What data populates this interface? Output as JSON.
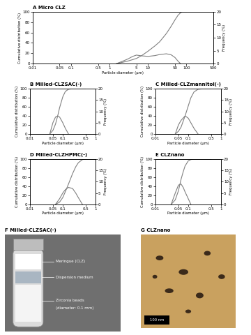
{
  "chart_data": [
    {
      "type": "line",
      "title": "A Micro CLZ",
      "x_label": "Particle diameter (μm)",
      "y_label": "Cumulative distribution (%)",
      "y2_label": "Frequency (%)",
      "log": "x",
      "xlim": [
        0.01,
        500
      ],
      "xticks": [
        0.01,
        0.05,
        0.1,
        0.5,
        1,
        5,
        10,
        50,
        100,
        500
      ],
      "ylim": [
        0,
        100
      ],
      "yticks": [
        0,
        20,
        40,
        60,
        80,
        100
      ],
      "y2lim": [
        0,
        20
      ],
      "y2ticks": [
        0,
        5,
        10,
        15,
        20
      ],
      "series": [
        {
          "color": "#808080",
          "x": [
            1.5,
            2,
            3,
            5,
            7,
            10,
            15,
            20,
            30,
            40,
            50,
            60,
            70,
            80,
            100
          ],
          "values": [
            0,
            2,
            5,
            10,
            16,
            24,
            34,
            42,
            58,
            72,
            84,
            93,
            98,
            100,
            100
          ]
        },
        {
          "color": "#808080",
          "axis": "y2",
          "x": [
            1.5,
            2,
            3,
            4,
            5,
            7,
            10,
            15,
            20,
            30,
            40,
            50,
            60,
            70
          ],
          "values": [
            0,
            0.7,
            1.8,
            2.8,
            3.3,
            3.0,
            2.8,
            3.1,
            3.5,
            3.8,
            3.4,
            2.4,
            1.0,
            0
          ]
        }
      ]
    },
    {
      "type": "line",
      "title": "B Milled-CLZSAC(-)",
      "x_label": "Particle diameter (μm)",
      "y_label": "Cumulative distribution (%)",
      "y2_label": "Frequency (%)",
      "log": "x",
      "xlim": [
        0.01,
        1
      ],
      "xticks": [
        0.01,
        0.05,
        0.1,
        0.5,
        1
      ],
      "ylim": [
        0,
        100
      ],
      "yticks": [
        0,
        20,
        40,
        60,
        80,
        100
      ],
      "y2lim": [
        0,
        20
      ],
      "y2ticks": [
        0,
        5,
        10,
        15,
        20
      ],
      "series": [
        {
          "color": "#808080",
          "x": [
            0.04,
            0.05,
            0.06,
            0.07,
            0.08,
            0.1,
            0.12,
            0.15,
            0.2,
            0.3,
            0.5
          ],
          "values": [
            0,
            8,
            22,
            40,
            58,
            82,
            94,
            99,
            100,
            100,
            100
          ]
        },
        {
          "color": "#808080",
          "axis": "y2",
          "x": [
            0.04,
            0.05,
            0.06,
            0.07,
            0.08,
            0.1,
            0.12,
            0.15
          ],
          "values": [
            0,
            5,
            7.5,
            8,
            7.5,
            5,
            2.5,
            0
          ]
        }
      ]
    },
    {
      "type": "line",
      "title": "C Milled-CLZmannitol(-)",
      "x_label": "Particle diameter (μm)",
      "y_label": "Cumulative distribution (%)",
      "y2_label": "Frequency (%)",
      "log": "x",
      "xlim": [
        0.01,
        1
      ],
      "xticks": [
        0.01,
        0.05,
        0.1,
        0.5,
        1
      ],
      "ylim": [
        0,
        100
      ],
      "yticks": [
        0,
        20,
        40,
        60,
        80,
        100
      ],
      "y2lim": [
        0,
        20
      ],
      "y2ticks": [
        0,
        5,
        10,
        15,
        20
      ],
      "series": [
        {
          "color": "#808080",
          "x": [
            0.04,
            0.05,
            0.06,
            0.08,
            0.1,
            0.12,
            0.15,
            0.2,
            0.3,
            0.5
          ],
          "values": [
            0,
            6,
            15,
            40,
            62,
            80,
            93,
            99,
            100,
            100
          ]
        },
        {
          "color": "#808080",
          "axis": "y2",
          "x": [
            0.04,
            0.05,
            0.06,
            0.08,
            0.1,
            0.12,
            0.15,
            0.2
          ],
          "values": [
            0,
            4,
            6,
            8,
            7,
            5,
            2.5,
            0
          ]
        }
      ]
    },
    {
      "type": "line",
      "title": "D Milled-CLZHPMC(-)",
      "x_label": "Particle diameter (μm)",
      "y_label": "Cumulative distribution (%)",
      "y2_label": "Frequency (%)",
      "log": "x",
      "xlim": [
        0.01,
        1
      ],
      "xticks": [
        0.01,
        0.05,
        0.1,
        0.5,
        1
      ],
      "ylim": [
        0,
        100
      ],
      "yticks": [
        0,
        20,
        40,
        60,
        80,
        100
      ],
      "y2lim": [
        0,
        20
      ],
      "y2ticks": [
        0,
        5,
        10,
        15,
        20
      ],
      "series": [
        {
          "color": "#808080",
          "x": [
            0.06,
            0.08,
            0.1,
            0.12,
            0.15,
            0.2,
            0.25,
            0.3,
            0.4,
            0.5,
            1
          ],
          "values": [
            0,
            5,
            15,
            28,
            45,
            68,
            83,
            92,
            99,
            100,
            100
          ]
        },
        {
          "color": "#808080",
          "axis": "y2",
          "x": [
            0.06,
            0.08,
            0.1,
            0.12,
            0.15,
            0.2,
            0.25,
            0.3,
            0.4
          ],
          "values": [
            0,
            2.5,
            5,
            6.5,
            7.5,
            7,
            5,
            3,
            0
          ]
        }
      ]
    },
    {
      "type": "line",
      "title": "E CLZnano",
      "x_label": "Particle diameter (μm)",
      "y_label": "Cumulative distribution (%)",
      "y2_label": "Frequency (%)",
      "log": "x",
      "xlim": [
        0.01,
        1
      ],
      "xticks": [
        0.01,
        0.05,
        0.1,
        0.5,
        1
      ],
      "ylim": [
        0,
        100
      ],
      "yticks": [
        0,
        20,
        40,
        60,
        80,
        100
      ],
      "y2lim": [
        0,
        20
      ],
      "y2ticks": [
        0,
        5,
        10,
        15,
        20
      ],
      "series": [
        {
          "color": "#808080",
          "x": [
            0.03,
            0.04,
            0.05,
            0.06,
            0.07,
            0.08,
            0.1,
            0.12,
            0.15,
            0.2,
            0.5
          ],
          "values": [
            0,
            10,
            30,
            55,
            72,
            85,
            96,
            99,
            100,
            100,
            100
          ]
        },
        {
          "color": "#808080",
          "axis": "y2",
          "x": [
            0.03,
            0.04,
            0.05,
            0.06,
            0.07,
            0.08,
            0.1,
            0.12
          ],
          "values": [
            0,
            5,
            8.5,
            9,
            7.5,
            5.5,
            2.5,
            0
          ]
        }
      ]
    }
  ],
  "panels": [
    {
      "title": "F Milled-CLZSAC(-)",
      "labels": [
        "Meringue (CLZ)",
        "Dispersion medium",
        "Zirconia beads",
        "(diameter: 0.1 mm)"
      ]
    },
    {
      "title": "G CLZnano",
      "scale_bar": "100 nm"
    }
  ]
}
